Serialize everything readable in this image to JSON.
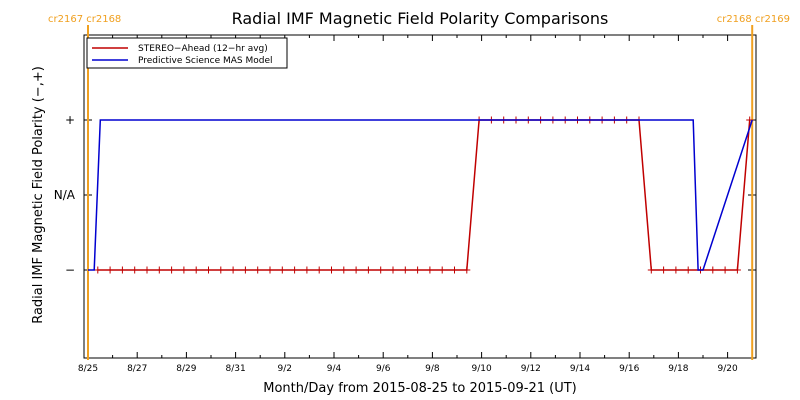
{
  "chart_data": {
    "type": "line",
    "title": "Radial IMF Magnetic Field Polarity Comparisons",
    "xlabel": "Month/Day from 2015-08-25 to 2015-09-21 (UT)",
    "ylabel": "Radial IMF Magnetic Field Polarity (−,+)",
    "x_ticks": [
      "8/25",
      "8/27",
      "8/29",
      "8/31",
      "9/2",
      "9/4",
      "9/6",
      "9/8",
      "9/10",
      "9/12",
      "9/14",
      "9/16",
      "9/18",
      "9/20"
    ],
    "y_ticks": [
      "−",
      "N/A",
      "+"
    ],
    "ylim": [
      -2,
      2
    ],
    "carrington": {
      "left": "cr2167 cr2168",
      "right": "cr2168 cr2169",
      "color": "#f0a020",
      "lines_day": [
        0.1,
        27.1
      ]
    },
    "legend": {
      "position": "top-left",
      "entries": [
        "STEREO−Ahead (12−hr avg)",
        "Predictive Science MAS Model"
      ]
    },
    "series": [
      {
        "name": "STEREO−Ahead (12−hr avg)",
        "color": "#c00000",
        "marker": "+",
        "x": [
          0.5,
          1.0,
          1.5,
          2.0,
          2.5,
          3.0,
          3.5,
          4.0,
          4.5,
          5.0,
          5.5,
          6.0,
          6.5,
          7.0,
          7.5,
          8.0,
          8.5,
          9.0,
          9.5,
          10.0,
          10.5,
          11.0,
          11.5,
          12.0,
          12.5,
          13.0,
          13.5,
          14.0,
          14.5,
          15.0,
          15.5,
          16.0,
          16.5,
          17.0,
          17.5,
          18.0,
          18.5,
          19.0,
          19.5,
          20.0,
          20.5,
          21.0,
          21.5,
          22.0,
          22.5,
          23.0,
          23.5,
          24.0,
          24.5,
          25.0,
          25.5,
          26.0,
          26.5,
          27.0
        ],
        "values": [
          -1,
          -1,
          -1,
          -1,
          -1,
          -1,
          -1,
          -1,
          -1,
          -1,
          -1,
          -1,
          -1,
          -1,
          -1,
          -1,
          -1,
          -1,
          -1,
          -1,
          -1,
          -1,
          -1,
          -1,
          -1,
          -1,
          -1,
          -1,
          -1,
          -1,
          -1,
          1,
          1,
          1,
          1,
          1,
          1,
          1,
          1,
          1,
          1,
          1,
          1,
          1,
          1,
          -1,
          -1,
          -1,
          -1,
          -1,
          -1,
          -1,
          -1,
          1
        ]
      },
      {
        "name": "Predictive Science MAS Model",
        "color": "#0000d0",
        "x": [
          0.1,
          0.35,
          0.6,
          24.7,
          24.9,
          25.1,
          27.1
        ],
        "values": [
          -1,
          -1,
          1,
          1,
          -1,
          -1,
          1
        ]
      }
    ]
  }
}
